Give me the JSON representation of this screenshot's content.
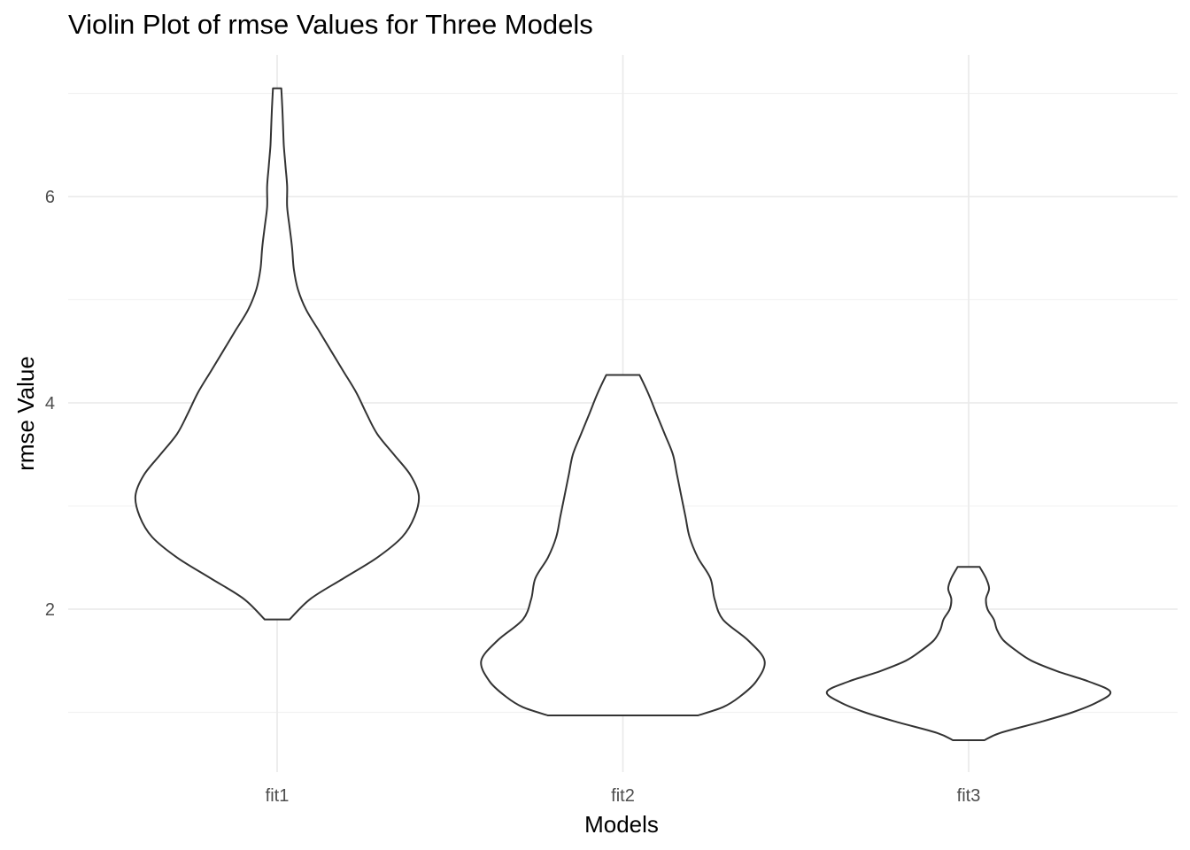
{
  "chart_data": {
    "type": "violin",
    "title": "Violin Plot of rmse Values for Three Models",
    "xlabel": "Models",
    "ylabel": "rmse Value",
    "categories": [
      "fit1",
      "fit2",
      "fit3"
    ],
    "y_ticks": [
      2,
      4,
      6
    ],
    "ylim": [
      0.4,
      7.3
    ],
    "grid": true,
    "outline_color": "#333333",
    "grid_color": "#ebebeb",
    "violins": [
      {
        "category": "fit1",
        "min": 1.9,
        "max": 7.05,
        "profile": [
          [
            1.9,
            0.015
          ],
          [
            2.1,
            0.04
          ],
          [
            2.3,
            0.08
          ],
          [
            2.5,
            0.12
          ],
          [
            2.7,
            0.15
          ],
          [
            2.9,
            0.165
          ],
          [
            3.1,
            0.17
          ],
          [
            3.3,
            0.16
          ],
          [
            3.5,
            0.14
          ],
          [
            3.7,
            0.12
          ],
          [
            3.9,
            0.107
          ],
          [
            4.1,
            0.095
          ],
          [
            4.3,
            0.08
          ],
          [
            4.5,
            0.065
          ],
          [
            4.7,
            0.05
          ],
          [
            4.9,
            0.035
          ],
          [
            5.1,
            0.025
          ],
          [
            5.3,
            0.02
          ],
          [
            5.5,
            0.018
          ],
          [
            5.7,
            0.015
          ],
          [
            5.9,
            0.012
          ],
          [
            6.1,
            0.012
          ],
          [
            6.3,
            0.01
          ],
          [
            6.5,
            0.008
          ],
          [
            6.7,
            0.007
          ],
          [
            6.9,
            0.006
          ],
          [
            7.05,
            0.005
          ]
        ]
      },
      {
        "category": "fit2",
        "min": 0.97,
        "max": 4.27,
        "profile": [
          [
            0.97,
            0.09
          ],
          [
            1.05,
            0.12
          ],
          [
            1.15,
            0.14
          ],
          [
            1.3,
            0.16
          ],
          [
            1.5,
            0.17
          ],
          [
            1.7,
            0.15
          ],
          [
            1.9,
            0.12
          ],
          [
            2.1,
            0.11
          ],
          [
            2.3,
            0.105
          ],
          [
            2.5,
            0.09
          ],
          [
            2.7,
            0.08
          ],
          [
            2.9,
            0.075
          ],
          [
            3.1,
            0.07
          ],
          [
            3.3,
            0.065
          ],
          [
            3.5,
            0.06
          ],
          [
            3.7,
            0.05
          ],
          [
            3.9,
            0.04
          ],
          [
            4.1,
            0.03
          ],
          [
            4.27,
            0.02
          ]
        ]
      },
      {
        "category": "fit3",
        "min": 0.73,
        "max": 2.41,
        "profile": [
          [
            0.73,
            0.05
          ],
          [
            0.8,
            0.1
          ],
          [
            0.9,
            0.22
          ],
          [
            1.0,
            0.33
          ],
          [
            1.1,
            0.41
          ],
          [
            1.2,
            0.45
          ],
          [
            1.3,
            0.38
          ],
          [
            1.4,
            0.28
          ],
          [
            1.5,
            0.2
          ],
          [
            1.6,
            0.15
          ],
          [
            1.7,
            0.11
          ],
          [
            1.8,
            0.09
          ],
          [
            1.9,
            0.08
          ],
          [
            2.0,
            0.06
          ],
          [
            2.1,
            0.055
          ],
          [
            2.2,
            0.065
          ],
          [
            2.3,
            0.055
          ],
          [
            2.41,
            0.035
          ]
        ]
      }
    ]
  }
}
